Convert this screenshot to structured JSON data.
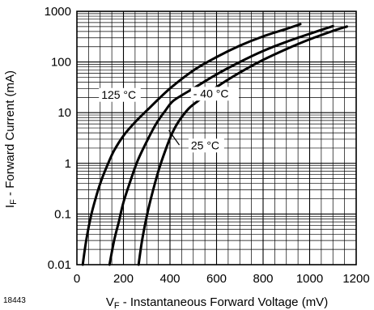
{
  "figure_number": "18443",
  "chart_data": {
    "type": "line",
    "title": "",
    "xlabel": {
      "main": "V",
      "sub": "F",
      "rest": " - Instantaneous Forward Voltage (mV)"
    },
    "ylabel": {
      "main": "I",
      "sub": "F",
      "rest": " - Forward Current (mA)"
    },
    "xlim": [
      0,
      1200
    ],
    "ylim": [
      0.01,
      1000
    ],
    "y_scale": "log",
    "grid": true,
    "x_ticks": [
      0,
      200,
      400,
      600,
      800,
      1000,
      1200
    ],
    "y_ticks": [
      {
        "value": 0.01,
        "label": "0.01"
      },
      {
        "value": 0.1,
        "label": "0.1"
      },
      {
        "value": 1,
        "label": "1"
      },
      {
        "value": 10,
        "label": "10"
      },
      {
        "value": 100,
        "label": "100"
      },
      {
        "value": 1000,
        "label": "1000"
      }
    ],
    "series": [
      {
        "name": "125 °C",
        "x": [
          25,
          40,
          60,
          80,
          100,
          130,
          160,
          200,
          250,
          300,
          400,
          500,
          600,
          700,
          800,
          900,
          960
        ],
        "y": [
          0.01,
          0.03,
          0.09,
          0.2,
          0.4,
          0.9,
          1.8,
          3.5,
          6.5,
          11,
          30,
          68,
          125,
          210,
          320,
          450,
          560
        ]
      },
      {
        "name": "25 °C",
        "x": [
          140,
          160,
          180,
          200,
          230,
          260,
          300,
          340,
          380,
          410,
          450,
          500,
          600,
          700,
          800,
          900,
          1000,
          1050,
          1100
        ],
        "y": [
          0.01,
          0.03,
          0.07,
          0.17,
          0.45,
          1.1,
          2.7,
          6,
          11,
          16.5,
          22,
          30,
          57,
          100,
          165,
          250,
          360,
          430,
          510
        ]
      },
      {
        "name": "- 40 °C",
        "x": [
          265,
          280,
          300,
          320,
          350,
          380,
          410,
          440,
          480,
          520,
          600,
          700,
          800,
          900,
          1000,
          1100,
          1160
        ],
        "y": [
          0.01,
          0.03,
          0.09,
          0.22,
          0.7,
          1.8,
          4,
          7,
          12,
          17,
          32,
          62,
          110,
          180,
          280,
          410,
          500
        ]
      }
    ],
    "annotations": [
      {
        "text": "125 °C",
        "x": 105,
        "y": 19
      },
      {
        "text": "- 40 °C",
        "x": 500,
        "y": 20
      },
      {
        "text": "25 °C",
        "x": 490,
        "y": 1.9
      }
    ]
  }
}
